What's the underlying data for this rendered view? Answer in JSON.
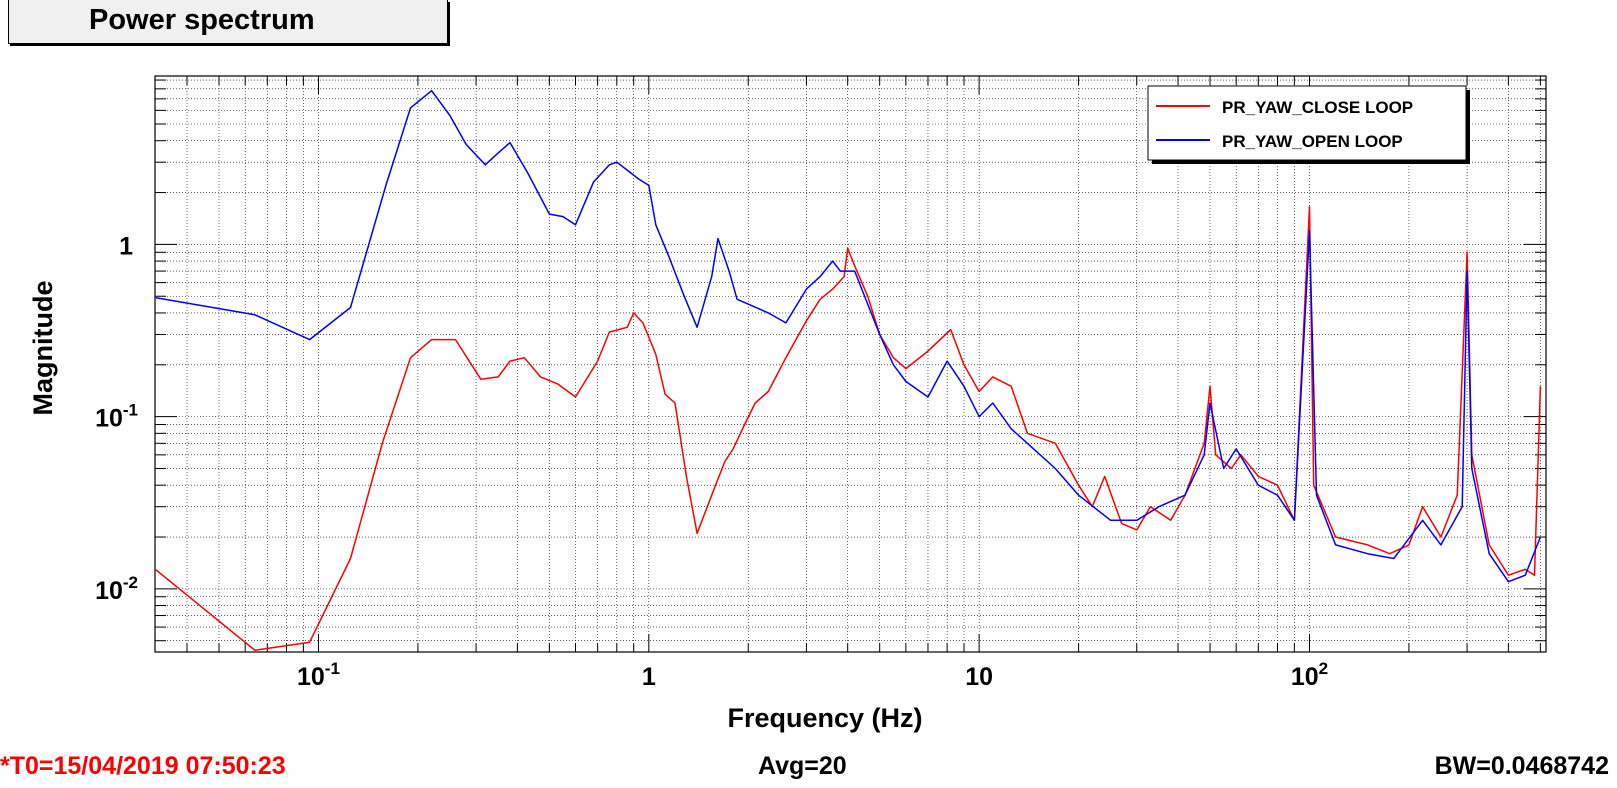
{
  "title": "Power spectrum",
  "footer": {
    "t0": "*T0=15/04/2019 07:50:23",
    "avg": "Avg=20",
    "bw": "BW=0.0468742"
  },
  "chart_data": {
    "type": "line",
    "title": "Power spectrum",
    "xlabel": "Frequency (Hz)",
    "ylabel": "Magnitude",
    "xscale": "log",
    "yscale": "log",
    "xlim": [
      0.032,
      520
    ],
    "ylim": [
      0.0043,
      9.5
    ],
    "grid": true,
    "legend_position": "top-right",
    "x_ticks": [
      {
        "value": 0.1,
        "base": "10",
        "exp": "-1"
      },
      {
        "value": 1,
        "base": "1",
        "exp": ""
      },
      {
        "value": 10,
        "base": "10",
        "exp": ""
      },
      {
        "value": 100,
        "base": "10",
        "exp": "2"
      }
    ],
    "y_ticks": [
      {
        "value": 0.01,
        "base": "10",
        "exp": "-2"
      },
      {
        "value": 0.1,
        "base": "10",
        "exp": "-1"
      },
      {
        "value": 1,
        "base": "1",
        "exp": ""
      }
    ],
    "series": [
      {
        "name": "PR_YAW_CLOSE LOOP",
        "color": "#ff0000",
        "points": [
          [
            0.0322,
            0.0129
          ],
          [
            0.0642,
            0.0044
          ],
          [
            0.094,
            0.0049
          ],
          [
            0.125,
            0.015
          ],
          [
            0.156,
            0.07
          ],
          [
            0.19,
            0.22
          ],
          [
            0.22,
            0.28
          ],
          [
            0.26,
            0.28
          ],
          [
            0.31,
            0.165
          ],
          [
            0.35,
            0.17
          ],
          [
            0.38,
            0.21
          ],
          [
            0.42,
            0.22
          ],
          [
            0.47,
            0.17
          ],
          [
            0.53,
            0.155
          ],
          [
            0.6,
            0.13
          ],
          [
            0.7,
            0.21
          ],
          [
            0.76,
            0.31
          ],
          [
            0.86,
            0.33
          ],
          [
            0.9,
            0.4
          ],
          [
            0.96,
            0.35
          ],
          [
            1.05,
            0.23
          ],
          [
            1.12,
            0.135
          ],
          [
            1.2,
            0.12
          ],
          [
            1.3,
            0.045
          ],
          [
            1.4,
            0.021
          ],
          [
            1.55,
            0.035
          ],
          [
            1.7,
            0.055
          ],
          [
            1.8,
            0.065
          ],
          [
            1.95,
            0.09
          ],
          [
            2.1,
            0.12
          ],
          [
            2.3,
            0.14
          ],
          [
            2.6,
            0.22
          ],
          [
            3.0,
            0.36
          ],
          [
            3.3,
            0.48
          ],
          [
            3.6,
            0.55
          ],
          [
            3.9,
            0.65
          ],
          [
            4.0,
            0.95
          ],
          [
            4.2,
            0.75
          ],
          [
            4.6,
            0.5
          ],
          [
            5.0,
            0.3
          ],
          [
            5.5,
            0.22
          ],
          [
            6.0,
            0.19
          ],
          [
            7.0,
            0.24
          ],
          [
            8.2,
            0.32
          ],
          [
            9.0,
            0.2
          ],
          [
            10.0,
            0.14
          ],
          [
            11.0,
            0.17
          ],
          [
            12.5,
            0.15
          ],
          [
            14.0,
            0.08
          ],
          [
            17.0,
            0.07
          ],
          [
            20.0,
            0.04
          ],
          [
            22.0,
            0.03
          ],
          [
            24.0,
            0.045
          ],
          [
            27.0,
            0.024
          ],
          [
            30.0,
            0.022
          ],
          [
            33.0,
            0.03
          ],
          [
            38.0,
            0.025
          ],
          [
            42.0,
            0.035
          ],
          [
            48.0,
            0.07
          ],
          [
            50.0,
            0.15
          ],
          [
            52.0,
            0.06
          ],
          [
            58.0,
            0.05
          ],
          [
            62.0,
            0.06
          ],
          [
            70.0,
            0.045
          ],
          [
            80.0,
            0.04
          ],
          [
            90.0,
            0.025
          ],
          [
            100.0,
            1.65
          ],
          [
            103.0,
            0.04
          ],
          [
            120.0,
            0.02
          ],
          [
            150.0,
            0.018
          ],
          [
            175.0,
            0.016
          ],
          [
            200.0,
            0.018
          ],
          [
            220.0,
            0.03
          ],
          [
            250.0,
            0.02
          ],
          [
            280.0,
            0.035
          ],
          [
            300.0,
            0.9
          ],
          [
            310.0,
            0.06
          ],
          [
            350.0,
            0.018
          ],
          [
            400.0,
            0.012
          ],
          [
            450.0,
            0.013
          ],
          [
            480.0,
            0.012
          ],
          [
            500.0,
            0.15
          ]
        ]
      },
      {
        "name": "PR_YAW_OPEN LOOP",
        "color": "#0000ff",
        "points": [
          [
            0.0322,
            0.49
          ],
          [
            0.0642,
            0.39
          ],
          [
            0.094,
            0.28
          ],
          [
            0.125,
            0.43
          ],
          [
            0.16,
            2.2
          ],
          [
            0.19,
            6.2
          ],
          [
            0.22,
            7.8
          ],
          [
            0.25,
            5.6
          ],
          [
            0.28,
            3.8
          ],
          [
            0.32,
            2.9
          ],
          [
            0.35,
            3.4
          ],
          [
            0.38,
            3.9
          ],
          [
            0.43,
            2.6
          ],
          [
            0.5,
            1.5
          ],
          [
            0.55,
            1.45
          ],
          [
            0.6,
            1.3
          ],
          [
            0.68,
            2.3
          ],
          [
            0.76,
            2.9
          ],
          [
            0.8,
            3.0
          ],
          [
            0.86,
            2.7
          ],
          [
            0.93,
            2.4
          ],
          [
            1.0,
            2.2
          ],
          [
            1.05,
            1.3
          ],
          [
            1.15,
            0.85
          ],
          [
            1.28,
            0.5
          ],
          [
            1.4,
            0.33
          ],
          [
            1.55,
            0.65
          ],
          [
            1.62,
            1.08
          ],
          [
            1.75,
            0.7
          ],
          [
            1.85,
            0.48
          ],
          [
            2.0,
            0.45
          ],
          [
            2.3,
            0.4
          ],
          [
            2.6,
            0.35
          ],
          [
            3.0,
            0.55
          ],
          [
            3.3,
            0.65
          ],
          [
            3.6,
            0.8
          ],
          [
            3.8,
            0.7
          ],
          [
            4.2,
            0.7
          ],
          [
            4.6,
            0.45
          ],
          [
            5.0,
            0.3
          ],
          [
            5.5,
            0.2
          ],
          [
            6.0,
            0.16
          ],
          [
            7.0,
            0.13
          ],
          [
            8.0,
            0.21
          ],
          [
            9.0,
            0.15
          ],
          [
            10.0,
            0.1
          ],
          [
            11.0,
            0.12
          ],
          [
            12.5,
            0.085
          ],
          [
            14.0,
            0.07
          ],
          [
            17.0,
            0.05
          ],
          [
            20.0,
            0.035
          ],
          [
            25.0,
            0.025
          ],
          [
            30.0,
            0.025
          ],
          [
            35.0,
            0.03
          ],
          [
            42.0,
            0.035
          ],
          [
            48.0,
            0.06
          ],
          [
            50.0,
            0.12
          ],
          [
            55.0,
            0.05
          ],
          [
            60.0,
            0.065
          ],
          [
            70.0,
            0.04
          ],
          [
            80.0,
            0.035
          ],
          [
            90.0,
            0.025
          ],
          [
            100.0,
            1.2
          ],
          [
            105.0,
            0.035
          ],
          [
            120.0,
            0.018
          ],
          [
            150.0,
            0.016
          ],
          [
            180.0,
            0.015
          ],
          [
            220.0,
            0.025
          ],
          [
            250.0,
            0.018
          ],
          [
            290.0,
            0.03
          ],
          [
            300.0,
            0.7
          ],
          [
            310.0,
            0.05
          ],
          [
            350.0,
            0.016
          ],
          [
            400.0,
            0.011
          ],
          [
            450.0,
            0.012
          ],
          [
            500.0,
            0.02
          ]
        ]
      }
    ]
  }
}
